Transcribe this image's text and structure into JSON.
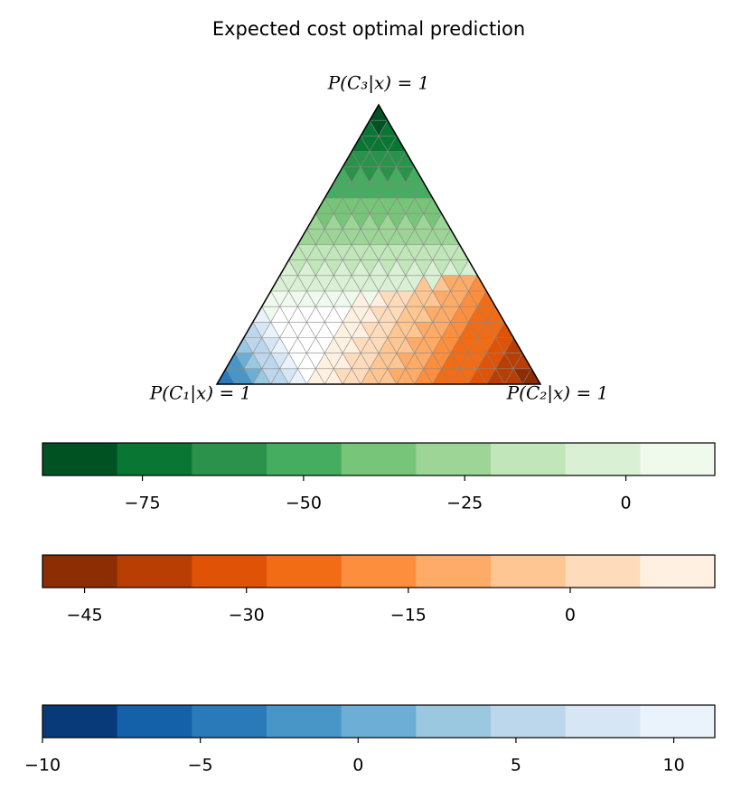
{
  "chart_data": {
    "type": "ternary",
    "title": "Expected cost optimal prediction",
    "vertex_labels": [
      "P(C₁|x) = 1",
      "P(C₂|x) = 1",
      "P(C₃|x) = 1"
    ],
    "colorbars": [
      {
        "name": "green",
        "xlim": [
          -90.5,
          13.8
        ],
        "xticks": [
          {
            "value": -75,
            "label": "−75"
          },
          {
            "value": -50,
            "label": "−50"
          },
          {
            "value": -25,
            "label": "−25"
          },
          0
        ],
        "colors": [
          "#005222",
          "#0a7633",
          "#2a924a",
          "#45ad5f",
          "#77c578",
          "#9dd597",
          "#c0e6b9",
          "#daf0d4",
          "#eff9ec"
        ]
      },
      {
        "name": "orange",
        "xlim": [
          -48.9,
          13.4
        ],
        "xticks": [
          {
            "value": -45,
            "label": "−45"
          },
          {
            "value": -30,
            "label": "−30"
          },
          {
            "value": -15,
            "label": "−15"
          },
          0
        ],
        "colors": [
          "#8c2d04",
          "#b93e03",
          "#e05206",
          "#f26b15",
          "#fd8e3d",
          "#fdab67",
          "#fdc692",
          "#fedcbb",
          "#fff0e2"
        ]
      },
      {
        "name": "blue",
        "xlim": [
          -10,
          11.3
        ],
        "xticks": [
          {
            "value": -10,
            "label": "−10"
          },
          {
            "value": -5,
            "label": "−5"
          },
          0,
          5,
          10
        ],
        "colors": [
          "#083a7a",
          "#1561a9",
          "#2a7ab9",
          "#4896c8",
          "#6caed6",
          "#9ac8e0",
          "#bcd7eb",
          "#d6e6f4",
          "#eaf3fb"
        ]
      }
    ]
  }
}
